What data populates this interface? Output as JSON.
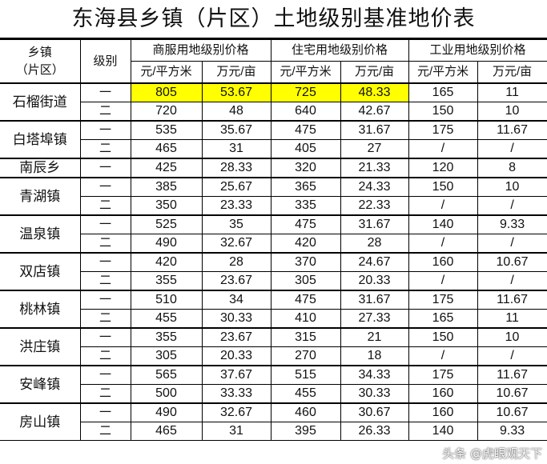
{
  "title": "东海县乡镇（片区）土地级别基准地价表",
  "headers": {
    "town": "乡镇\n（片区）",
    "level": "级别",
    "commercial": "商服用地级别价格",
    "residential": "住宅用地级别价格",
    "industrial": "工业用地级别价格",
    "unit_sqm": "元/平方米",
    "unit_mu": "万元/亩"
  },
  "highlight_color": "#ffff00",
  "towns": [
    {
      "name": "石榴街道",
      "rows": [
        [
          "一",
          "805",
          "53.67",
          "725",
          "48.33",
          "165",
          "11"
        ],
        [
          "二",
          "720",
          "48",
          "640",
          "42.67",
          "150",
          "10"
        ]
      ]
    },
    {
      "name": "白塔埠镇",
      "rows": [
        [
          "一",
          "535",
          "35.67",
          "475",
          "31.67",
          "175",
          "11.67"
        ],
        [
          "二",
          "465",
          "31",
          "405",
          "27",
          "/",
          "/"
        ]
      ]
    },
    {
      "name": "南辰乡",
      "rows": [
        [
          "一",
          "425",
          "28.33",
          "320",
          "21.33",
          "120",
          "8"
        ]
      ]
    },
    {
      "name": "青湖镇",
      "rows": [
        [
          "一",
          "385",
          "25.67",
          "365",
          "24.33",
          "150",
          "10"
        ],
        [
          "二",
          "350",
          "23.33",
          "335",
          "22.33",
          "/",
          "/"
        ]
      ]
    },
    {
      "name": "温泉镇",
      "rows": [
        [
          "一",
          "525",
          "35",
          "475",
          "31.67",
          "140",
          "9.33"
        ],
        [
          "二",
          "490",
          "32.67",
          "420",
          "28",
          "/",
          "/"
        ]
      ]
    },
    {
      "name": "双店镇",
      "rows": [
        [
          "一",
          "420",
          "28",
          "370",
          "24.67",
          "160",
          "10.67"
        ],
        [
          "二",
          "355",
          "23.67",
          "305",
          "20.33",
          "/",
          "/"
        ]
      ]
    },
    {
      "name": "桃林镇",
      "rows": [
        [
          "一",
          "510",
          "34",
          "475",
          "31.67",
          "175",
          "11.67"
        ],
        [
          "二",
          "455",
          "30.33",
          "410",
          "27.33",
          "165",
          "11"
        ]
      ]
    },
    {
      "name": "洪庄镇",
      "rows": [
        [
          "一",
          "355",
          "23.67",
          "315",
          "21",
          "150",
          "10"
        ],
        [
          "二",
          "305",
          "20.33",
          "270",
          "18",
          "/",
          "/"
        ]
      ]
    },
    {
      "name": "安峰镇",
      "rows": [
        [
          "一",
          "565",
          "37.67",
          "515",
          "34.33",
          "175",
          "11.67"
        ],
        [
          "二",
          "500",
          "33.33",
          "455",
          "30.33",
          "160",
          "10.67"
        ]
      ]
    },
    {
      "name": "房山镇",
      "rows": [
        [
          "一",
          "490",
          "32.67",
          "460",
          "30.67",
          "160",
          "10.67"
        ],
        [
          "二",
          "465",
          "31",
          "395",
          "26.33",
          "140",
          "9.33"
        ]
      ]
    }
  ],
  "watermark": "头条 @虎眼观天下"
}
